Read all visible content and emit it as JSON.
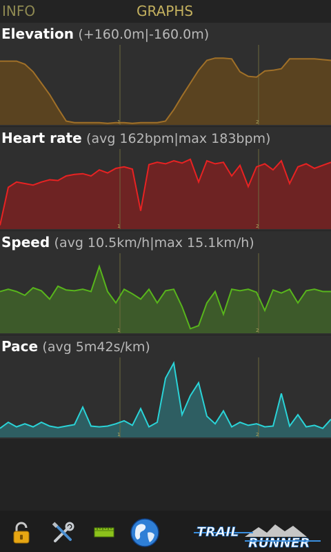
{
  "tabs": [
    {
      "label": "INFO"
    },
    {
      "label": "GRAPHS"
    }
  ],
  "graphs": [
    {
      "name": "Elevation",
      "stats": "(+160.0m|-160.0m)",
      "color": "#a07028",
      "fill": "#5a4320",
      "values": [
        0.84,
        0.84,
        0.84,
        0.8,
        0.7,
        0.55,
        0.4,
        0.22,
        0.05,
        0.03,
        0.03,
        0.03,
        0.03,
        0.02,
        0.03,
        0.03,
        0.02,
        0.03,
        0.03,
        0.03,
        0.05,
        0.2,
        0.38,
        0.55,
        0.72,
        0.85,
        0.88,
        0.88,
        0.87,
        0.7,
        0.64,
        0.63,
        0.71,
        0.72,
        0.74,
        0.87,
        0.87,
        0.87,
        0.87,
        0.86,
        0.85
      ]
    },
    {
      "name": "Heart rate",
      "stats": "(avg 162bpm|max 183bpm)",
      "color": "#e82222",
      "fill": "#6e2323",
      "values": [
        0.05,
        0.55,
        0.62,
        0.6,
        0.58,
        0.62,
        0.65,
        0.64,
        0.7,
        0.72,
        0.73,
        0.7,
        0.78,
        0.74,
        0.8,
        0.82,
        0.79,
        0.24,
        0.85,
        0.88,
        0.86,
        0.9,
        0.87,
        0.92,
        0.62,
        0.9,
        0.86,
        0.88,
        0.7,
        0.84,
        0.56,
        0.82,
        0.86,
        0.78,
        0.9,
        0.6,
        0.82,
        0.86,
        0.8,
        0.84,
        0.88
      ]
    },
    {
      "name": "Speed",
      "stats": "(avg 10.5km/h|max 15.1km/h)",
      "color": "#58b51c",
      "fill": "#3d5a2a",
      "values": [
        0.55,
        0.58,
        0.55,
        0.5,
        0.6,
        0.56,
        0.45,
        0.62,
        0.57,
        0.56,
        0.58,
        0.55,
        0.88,
        0.55,
        0.4,
        0.58,
        0.52,
        0.45,
        0.58,
        0.4,
        0.56,
        0.58,
        0.35,
        0.06,
        0.1,
        0.4,
        0.55,
        0.25,
        0.58,
        0.56,
        0.58,
        0.54,
        0.3,
        0.57,
        0.53,
        0.58,
        0.4,
        0.56,
        0.58,
        0.55,
        0.55
      ]
    },
    {
      "name": "Pace",
      "stats": "(avg 5m42s/km)",
      "color": "#2ad4d8",
      "fill": "#2e5e62",
      "values": [
        0.12,
        0.2,
        0.14,
        0.18,
        0.14,
        0.2,
        0.15,
        0.13,
        0.15,
        0.17,
        0.4,
        0.15,
        0.14,
        0.15,
        0.18,
        0.22,
        0.16,
        0.38,
        0.14,
        0.2,
        0.78,
        0.98,
        0.3,
        0.55,
        0.72,
        0.28,
        0.18,
        0.35,
        0.14,
        0.2,
        0.16,
        0.18,
        0.14,
        0.15,
        0.58,
        0.15,
        0.3,
        0.14,
        0.16,
        0.12,
        0.24
      ]
    }
  ],
  "markers": [
    "1",
    "2"
  ],
  "toolbar": {
    "items": [
      {
        "icon": "padlock-icon"
      },
      {
        "icon": "tools-icon"
      },
      {
        "icon": "ruler-icon"
      },
      {
        "icon": "globe-icon"
      }
    ]
  },
  "logo": {
    "line1": "TRAIL",
    "line2": "RUNNER"
  }
}
